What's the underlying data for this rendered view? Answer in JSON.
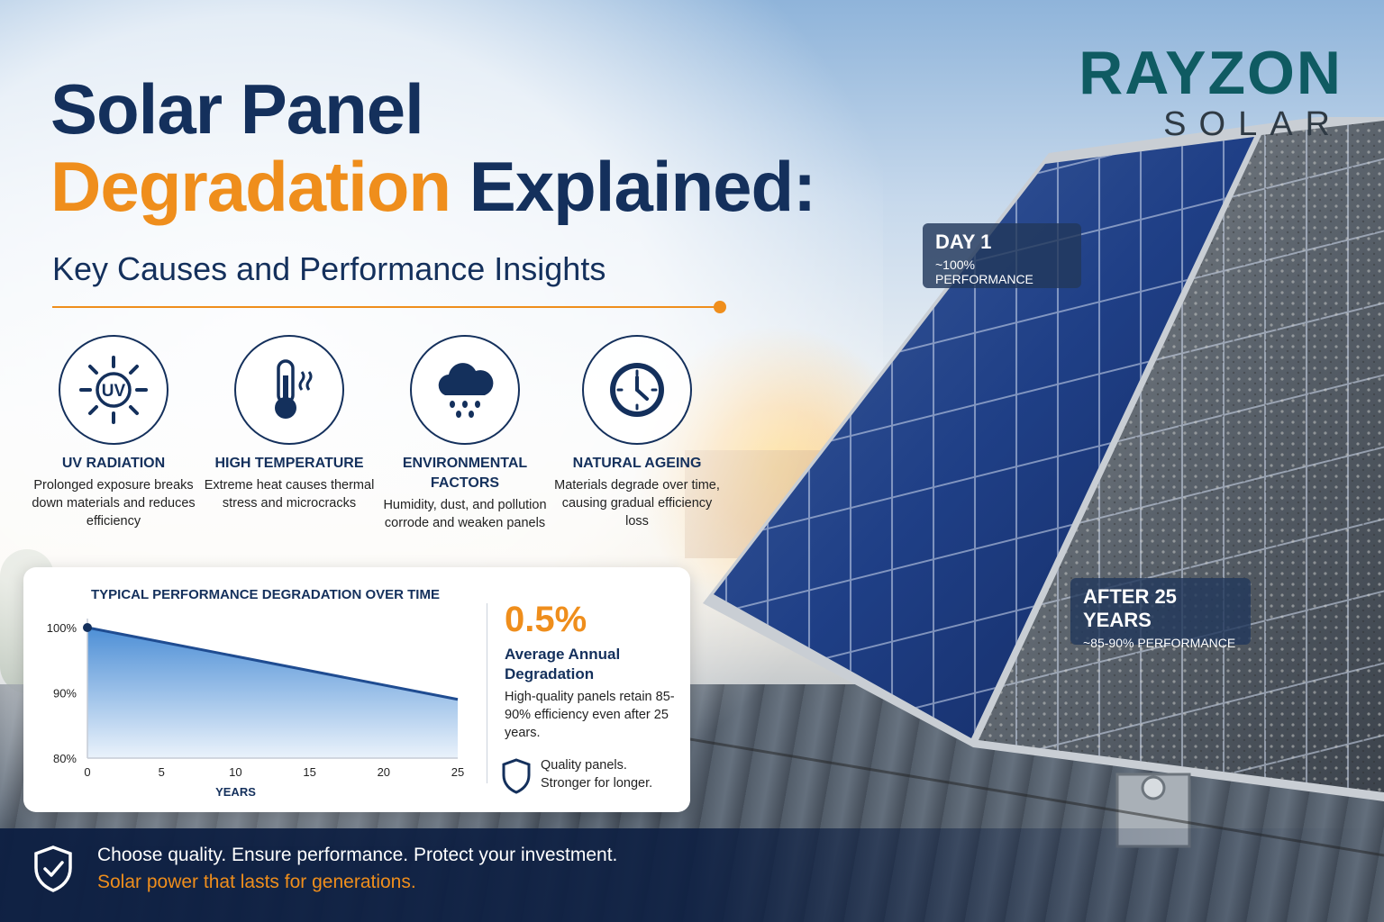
{
  "header": {
    "title_line1": "Solar Panel",
    "title_accent": "Degradation",
    "title_rest": " Explained:",
    "subtitle": "Key Causes and Performance Insights"
  },
  "logo": {
    "brand": "RAYZON",
    "sub": "SOLAR"
  },
  "causes": [
    {
      "icon": "uv-sun-icon",
      "icon_text": "UV",
      "title": "UV RADIATION",
      "desc": "Prolonged exposure breaks down materials and reduces efficiency"
    },
    {
      "icon": "thermometer-icon",
      "title": "HIGH TEMPERATURE",
      "desc": "Extreme heat causes thermal stress and microcracks"
    },
    {
      "icon": "rain-cloud-icon",
      "title": "ENVIRONMENTAL FACTORS",
      "desc": "Humidity, dust, and pollution corrode and weaken panels"
    },
    {
      "icon": "clock-icon",
      "title": "NATURAL AGEING",
      "desc": "Materials degrade over time, causing gradual efficiency loss"
    }
  ],
  "panel_tags": {
    "day1": {
      "title": "DAY 1",
      "value": "~100% PERFORMANCE"
    },
    "after": {
      "title": "AFTER 25 YEARS",
      "value": "~85-90% PERFORMANCE"
    }
  },
  "chart_data": {
    "type": "area",
    "title": "TYPICAL PERFORMANCE DEGRADATION OVER TIME",
    "xlabel": "YEARS",
    "ylabel": "",
    "x": [
      0,
      25
    ],
    "y": [
      100,
      89
    ],
    "xticks": [
      "0",
      "5",
      "10",
      "15",
      "20",
      "25"
    ],
    "yticks": [
      "100%",
      "90%",
      "80%"
    ],
    "xlim": [
      0,
      25
    ],
    "ylim": [
      80,
      100
    ],
    "colors": {
      "line": "#1f4c91",
      "fill_top": "#4d8fd6",
      "fill_bottom": "#eaf2fb"
    }
  },
  "stat": {
    "value": "0.5%",
    "label": "Average Annual Degradation",
    "desc": "High-quality panels retain 85-90% efficiency even after 25 years.",
    "quality_line1": "Quality panels.",
    "quality_line2": "Stronger for longer."
  },
  "footer": {
    "line1": "Choose quality. Ensure performance. Protect your investment.",
    "line2": "Solar power that lasts for generations."
  },
  "colors": {
    "navy": "#14305c",
    "orange": "#ef8e1c",
    "teal": "#0f5b62"
  }
}
